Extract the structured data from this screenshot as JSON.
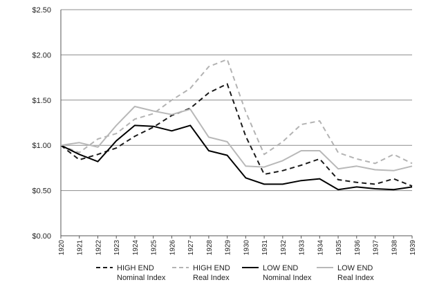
{
  "chart_data": {
    "type": "line",
    "title": "",
    "xlabel": "",
    "ylabel": "",
    "x": [
      "1920",
      "1921",
      "1922",
      "1923",
      "1924",
      "1925",
      "1926",
      "1927",
      "1928",
      "1929",
      "1930",
      "1931",
      "1932",
      "1933",
      "1934",
      "1935",
      "1936",
      "1937",
      "1938",
      "1939"
    ],
    "ylim": [
      0,
      2.5
    ],
    "yticks": [
      0,
      0.5,
      1.0,
      1.5,
      2.0,
      2.5
    ],
    "ytick_labels": [
      "$0.00",
      "$0.50",
      "$1.00",
      "$1.50",
      "$2.00",
      "$2.50"
    ],
    "grid": true,
    "legend_position": "bottom",
    "series": [
      {
        "name_line1": "HIGH END",
        "name_line2": "Nominal Index",
        "color": "#1a1a1a",
        "dashed": true,
        "values": [
          1.0,
          0.84,
          0.9,
          0.97,
          1.1,
          1.2,
          1.33,
          1.41,
          1.58,
          1.68,
          1.1,
          0.68,
          0.72,
          0.78,
          0.85,
          0.62,
          0.59,
          0.57,
          0.63,
          0.55
        ]
      },
      {
        "name_line1": "HIGH END",
        "name_line2": "Real Index",
        "color": "#b3b3b3",
        "dashed": true,
        "values": [
          1.0,
          0.92,
          1.07,
          1.13,
          1.29,
          1.35,
          1.5,
          1.63,
          1.87,
          1.95,
          1.37,
          0.9,
          1.04,
          1.23,
          1.27,
          0.92,
          0.85,
          0.8,
          0.9,
          0.8
        ]
      },
      {
        "name_line1": "LOW END",
        "name_line2": "Nominal Index",
        "color": "#000000",
        "dashed": false,
        "values": [
          1.0,
          0.9,
          0.82,
          1.05,
          1.22,
          1.21,
          1.16,
          1.22,
          0.94,
          0.89,
          0.64,
          0.57,
          0.57,
          0.61,
          0.63,
          0.51,
          0.54,
          0.52,
          0.51,
          0.54
        ]
      },
      {
        "name_line1": "LOW END",
        "name_line2": "Real Index",
        "color": "#b8b8b8",
        "dashed": false,
        "values": [
          1.0,
          1.03,
          0.98,
          1.22,
          1.43,
          1.38,
          1.34,
          1.4,
          1.09,
          1.04,
          0.77,
          0.76,
          0.83,
          0.94,
          0.94,
          0.74,
          0.77,
          0.73,
          0.72,
          0.77
        ]
      }
    ]
  }
}
